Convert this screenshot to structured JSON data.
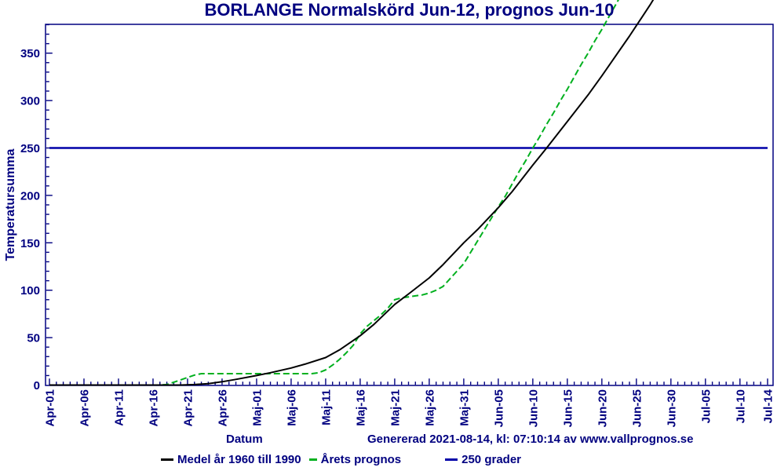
{
  "chart_data": {
    "type": "line",
    "title": "BORLANGE Normalskörd Jun-12, prognos Jun-10",
    "xlabel": "Datum",
    "ylabel": "Temperatursumma",
    "x_unit": "days, day 0 = Apr-01",
    "xlim_days": [
      0,
      104
    ],
    "ylim": [
      0,
      380
    ],
    "grid": false,
    "legend_position": "bottom",
    "y_ticks": [
      0,
      50,
      100,
      150,
      200,
      250,
      300,
      350
    ],
    "y_minor_tick_every": 10,
    "x_minor_tick_every_days": 1,
    "x_ticks": [
      {
        "day": 0,
        "label": "Apr-01"
      },
      {
        "day": 5,
        "label": "Apr-06"
      },
      {
        "day": 10,
        "label": "Apr-11"
      },
      {
        "day": 15,
        "label": "Apr-16"
      },
      {
        "day": 20,
        "label": "Apr-21"
      },
      {
        "day": 25,
        "label": "Apr-26"
      },
      {
        "day": 30,
        "label": "Maj-01"
      },
      {
        "day": 35,
        "label": "Maj-06"
      },
      {
        "day": 40,
        "label": "Maj-11"
      },
      {
        "day": 45,
        "label": "Maj-16"
      },
      {
        "day": 50,
        "label": "Maj-21"
      },
      {
        "day": 55,
        "label": "Maj-26"
      },
      {
        "day": 60,
        "label": "Maj-31"
      },
      {
        "day": 65,
        "label": "Jun-05"
      },
      {
        "day": 70,
        "label": "Jun-10"
      },
      {
        "day": 75,
        "label": "Jun-15"
      },
      {
        "day": 80,
        "label": "Jun-20"
      },
      {
        "day": 85,
        "label": "Jun-25"
      },
      {
        "day": 90,
        "label": "Jun-30"
      },
      {
        "day": 95,
        "label": "Jul-05"
      },
      {
        "day": 100,
        "label": "Jul-10"
      },
      {
        "day": 104,
        "label": "Jul-14"
      }
    ],
    "reference_line": {
      "value": 250,
      "label": "250 grader",
      "color": "#0000A8"
    },
    "series": [
      {
        "name": "Medel år 1960 till 1990",
        "style": "solid",
        "color": "#000000",
        "points": [
          [
            0,
            0
          ],
          [
            5,
            0
          ],
          [
            10,
            0
          ],
          [
            15,
            0
          ],
          [
            19,
            0
          ],
          [
            21,
            0.5
          ],
          [
            23,
            1.5
          ],
          [
            25,
            3.5
          ],
          [
            27,
            6
          ],
          [
            30,
            10
          ],
          [
            32,
            13
          ],
          [
            35,
            18
          ],
          [
            37,
            22
          ],
          [
            40,
            29
          ],
          [
            42,
            37
          ],
          [
            45,
            52
          ],
          [
            47,
            64
          ],
          [
            50,
            85
          ],
          [
            52,
            96
          ],
          [
            55,
            113
          ],
          [
            57,
            127
          ],
          [
            60,
            150
          ],
          [
            62,
            164
          ],
          [
            65,
            187
          ],
          [
            67,
            204
          ],
          [
            70,
            232
          ],
          [
            72,
            250
          ],
          [
            75,
            278
          ],
          [
            78,
            306
          ],
          [
            80,
            326
          ],
          [
            82,
            347
          ],
          [
            84,
            368
          ],
          [
            85,
            379
          ],
          [
            86,
            390
          ],
          [
            87,
            401
          ],
          [
            88,
            413
          ]
        ]
      },
      {
        "name": "Årets prognos",
        "style": "dashed",
        "color": "#00B01E",
        "points": [
          [
            0,
            0
          ],
          [
            4,
            0
          ],
          [
            8,
            0
          ],
          [
            12,
            0
          ],
          [
            16,
            0
          ],
          [
            17,
            0.5
          ],
          [
            19,
            5.5
          ],
          [
            21,
            10.5
          ],
          [
            22,
            12
          ],
          [
            26,
            12
          ],
          [
            30,
            12
          ],
          [
            34,
            12
          ],
          [
            38,
            12
          ],
          [
            39,
            13
          ],
          [
            40,
            16
          ],
          [
            41,
            21
          ],
          [
            42,
            27
          ],
          [
            43,
            34
          ],
          [
            44,
            42
          ],
          [
            45,
            54
          ],
          [
            46,
            62
          ],
          [
            47,
            68
          ],
          [
            48,
            74
          ],
          [
            49,
            81
          ],
          [
            50,
            90
          ],
          [
            51,
            92
          ],
          [
            52,
            93
          ],
          [
            53,
            94
          ],
          [
            54,
            95
          ],
          [
            55,
            97
          ],
          [
            56,
            100
          ],
          [
            57,
            104
          ],
          [
            58,
            112
          ],
          [
            59,
            120
          ],
          [
            60,
            128
          ],
          [
            61,
            140
          ],
          [
            62,
            152
          ],
          [
            63,
            164
          ],
          [
            64,
            176
          ],
          [
            65,
            188
          ],
          [
            66,
            199
          ],
          [
            67,
            212
          ],
          [
            68,
            225
          ],
          [
            69,
            237
          ],
          [
            70,
            250
          ],
          [
            71,
            262
          ],
          [
            72,
            275
          ],
          [
            73,
            287
          ],
          [
            74,
            300
          ],
          [
            75,
            312
          ],
          [
            76,
            325
          ],
          [
            77,
            338
          ],
          [
            78,
            350
          ],
          [
            79,
            363
          ],
          [
            80,
            375
          ],
          [
            81,
            388
          ],
          [
            82,
            401
          ],
          [
            83,
            414
          ]
        ]
      }
    ],
    "colors": {
      "axis": "#000080",
      "text": "#000080",
      "reference": "#0000A8"
    }
  },
  "legend": {
    "items": [
      {
        "label": "Medel år 1960 till 1990"
      },
      {
        "label": "Årets prognos"
      },
      {
        "label": "250 grader"
      }
    ]
  },
  "footer": {
    "generated": "Genererad 2021-08-14, kl: 07:10:14 av www.vallprognos.se"
  }
}
